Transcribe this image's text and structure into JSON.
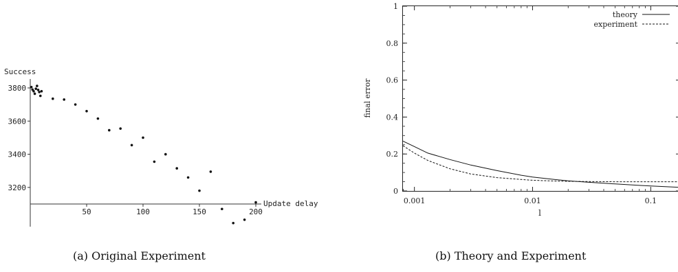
{
  "captions": {
    "a": "(a) Original Experiment",
    "b": "(b) Theory and Experiment"
  },
  "chart_data": [
    {
      "type": "scatter",
      "title": "",
      "xlabel": "Update delay",
      "ylabel": "Success",
      "xlim": [
        0,
        200
      ],
      "ylim": [
        2980,
        3840
      ],
      "x_ticks": [
        50,
        100,
        150,
        200
      ],
      "y_ticks": [
        3200,
        3400,
        3600,
        3800
      ],
      "grid": false,
      "series": [
        {
          "x": [
            1,
            2,
            3,
            4,
            5,
            6,
            7,
            8,
            9,
            10,
            20,
            30,
            40,
            50,
            60,
            70,
            80,
            90,
            100,
            110,
            120,
            130,
            140,
            150,
            160,
            170,
            180,
            190,
            200
          ],
          "y": [
            3805,
            3790,
            3780,
            3765,
            3795,
            3812,
            3788,
            3775,
            3752,
            3780,
            3735,
            3730,
            3700,
            3660,
            3615,
            3545,
            3555,
            3455,
            3500,
            3355,
            3400,
            3315,
            3260,
            3180,
            3295,
            3070,
            2985,
            3005,
            3110
          ]
        }
      ]
    },
    {
      "type": "line",
      "title": "",
      "xlabel": "l",
      "ylabel": "final error",
      "x_scale": "log",
      "xlim": [
        0.0008,
        0.17
      ],
      "ylim": [
        0,
        1
      ],
      "x_ticks": [
        "0.001",
        "0.01",
        "0.1"
      ],
      "y_ticks": [
        "0",
        "0.2",
        "0.4",
        "0.6",
        "0.8",
        "1"
      ],
      "grid": false,
      "legend": "top-right",
      "series": [
        {
          "name": "theory",
          "style": "solid",
          "x": [
            0.0008,
            0.001,
            0.0013,
            0.002,
            0.003,
            0.005,
            0.008,
            0.01,
            0.015,
            0.02,
            0.03,
            0.05,
            0.08,
            0.1,
            0.17
          ],
          "y": [
            0.27,
            0.24,
            0.205,
            0.17,
            0.14,
            0.11,
            0.085,
            0.075,
            0.063,
            0.055,
            0.047,
            0.038,
            0.03,
            0.027,
            0.02
          ]
        },
        {
          "name": "experiment",
          "style": "dashed",
          "x": [
            0.0008,
            0.001,
            0.0013,
            0.002,
            0.003,
            0.005,
            0.008,
            0.01,
            0.015,
            0.02,
            0.03,
            0.05,
            0.08,
            0.1,
            0.17
          ],
          "y": [
            0.245,
            0.205,
            0.165,
            0.12,
            0.092,
            0.072,
            0.062,
            0.058,
            0.054,
            0.052,
            0.051,
            0.05,
            0.05,
            0.05,
            0.05
          ]
        }
      ]
    }
  ]
}
